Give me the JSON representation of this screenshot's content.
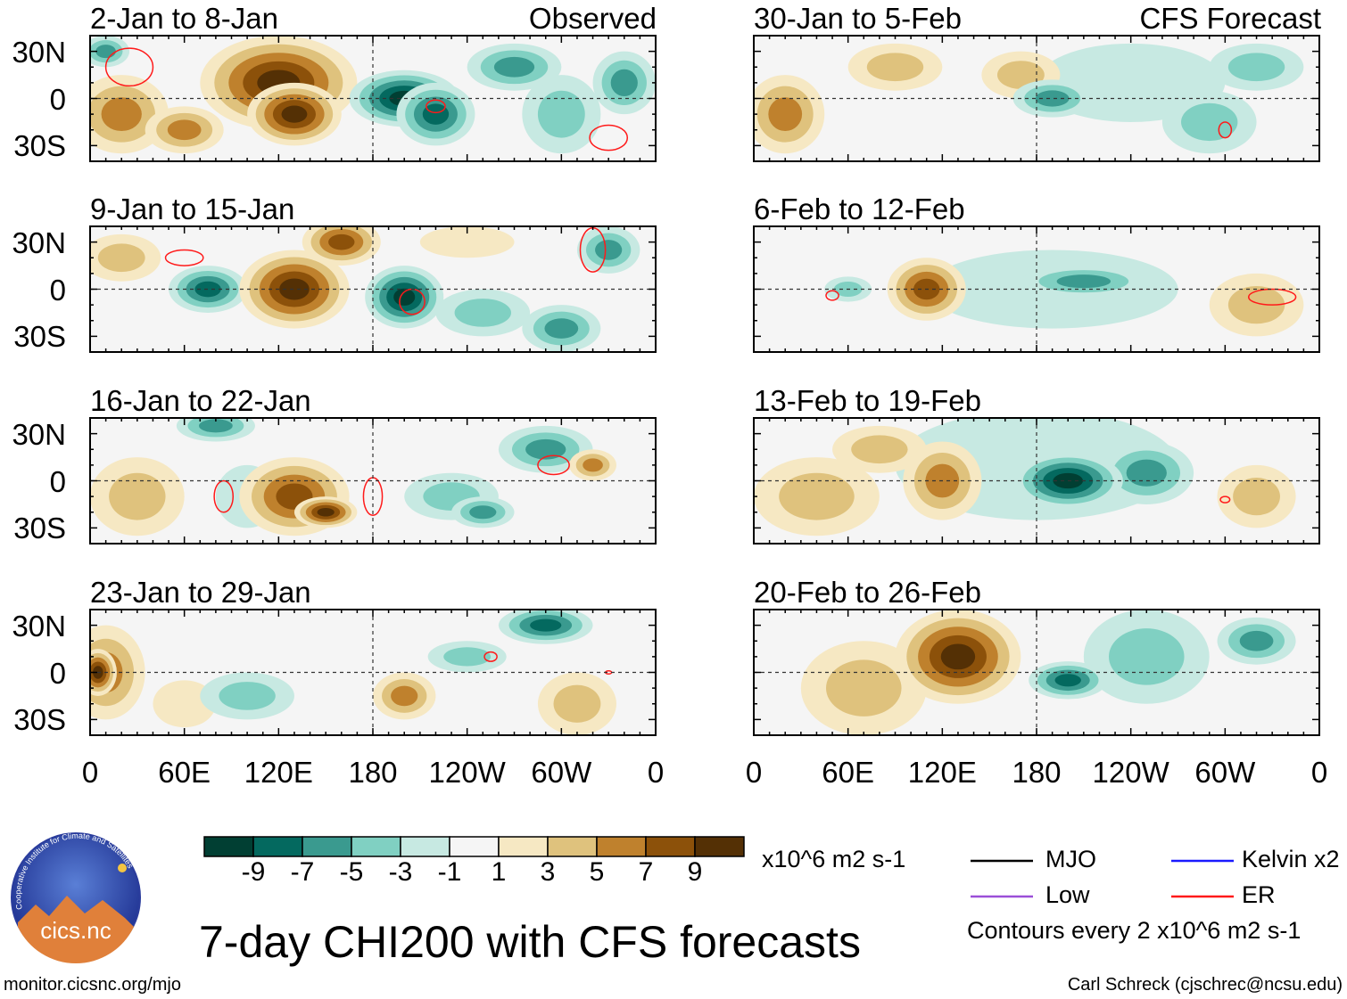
{
  "chart_data": {
    "type": "heatmap",
    "title": "7-day CHI200 with CFS forecasts",
    "units": "x10^6 m2 s-1",
    "left_column_label": "Observed",
    "right_column_label": "CFS Forecast",
    "panels": [
      {
        "period": "2-Jan to 8-Jan",
        "source": "Observed"
      },
      {
        "period": "9-Jan to 15-Jan",
        "source": "Observed"
      },
      {
        "period": "16-Jan to 22-Jan",
        "source": "Observed"
      },
      {
        "period": "23-Jan to 29-Jan",
        "source": "Observed"
      },
      {
        "period": "30-Jan to 5-Feb",
        "source": "CFS Forecast"
      },
      {
        "period": "6-Feb to 12-Feb",
        "source": "CFS Forecast"
      },
      {
        "period": "13-Feb to 19-Feb",
        "source": "CFS Forecast"
      },
      {
        "period": "20-Feb to 26-Feb",
        "source": "CFS Forecast"
      }
    ],
    "y_ticks": [
      "30N",
      "0",
      "30S"
    ],
    "x_ticks": [
      "0",
      "60E",
      "120E",
      "180",
      "120W",
      "60W",
      "0"
    ],
    "colorbar": {
      "labels": [
        "-9",
        "-7",
        "-5",
        "-3",
        "-1",
        "1",
        "3",
        "5",
        "7",
        "9"
      ],
      "colors": [
        "#013f33",
        "#04695f",
        "#3a9a8f",
        "#80d0c2",
        "#c7e9e2",
        "#f5f5f5",
        "#f6e8c3",
        "#dfc27d",
        "#bf812d",
        "#8c510a",
        "#543005"
      ]
    },
    "legend": [
      {
        "label": "MJO",
        "color": "#000000"
      },
      {
        "label": "Kelvin x2",
        "color": "#1a1aff"
      },
      {
        "label": "Low",
        "color": "#9b4fd8"
      },
      {
        "label": "ER",
        "color": "#ff1a1a"
      }
    ],
    "contour_note": "Contours every 2 x10^6 m2 s-1"
  },
  "footer": {
    "url": "monitor.cicsnc.org/mjo",
    "credit": "Carl Schreck (cjschrec@ncsu.edu)"
  },
  "logo": {
    "name": "cics.nc",
    "ring_text": "Cooperative Institute for Climate and Satellites"
  }
}
